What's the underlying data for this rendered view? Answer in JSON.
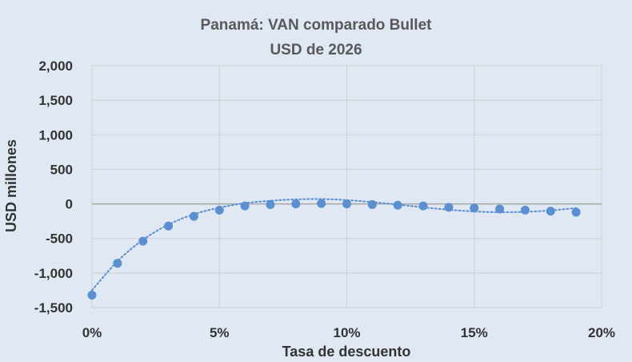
{
  "chart_data": {
    "type": "scatter",
    "title": "Panamá: VAN comparado Bullet",
    "subtitle": "USD de 2026",
    "xlabel": "Tasa de descuento",
    "ylabel": "USD millones",
    "xlim": [
      0,
      20
    ],
    "ylim": [
      -1500,
      2000
    ],
    "x_ticks": [
      0,
      5,
      10,
      15,
      20
    ],
    "x_tick_labels": [
      "0%",
      "5%",
      "10%",
      "15%",
      "20%"
    ],
    "y_ticks": [
      2000,
      1500,
      1000,
      500,
      0,
      -500,
      -1000,
      -1500
    ],
    "y_tick_labels": [
      "2,000",
      "1,500",
      "1,000",
      "500",
      "0",
      "-500",
      "-1,000",
      "-1,500"
    ],
    "grid": true,
    "trendline": "polynomial (dotted)",
    "series": [
      {
        "x": [
          0,
          1,
          2,
          3,
          4,
          5,
          6,
          7,
          8,
          9,
          10,
          11,
          12,
          13,
          14,
          15,
          16,
          17,
          18,
          19
        ],
        "values": [
          -1320,
          -860,
          -540,
          -320,
          -180,
          -90,
          -30,
          -10,
          0,
          5,
          0,
          -10,
          -20,
          -30,
          -50,
          -60,
          -75,
          -90,
          -105,
          -120
        ],
        "color": "#5b8fcf"
      }
    ],
    "trend": [
      [
        0,
        -1250
      ],
      [
        1,
        -830
      ],
      [
        2,
        -520
      ],
      [
        3,
        -300
      ],
      [
        4,
        -150
      ],
      [
        5,
        -55
      ],
      [
        6,
        10
      ],
      [
        7,
        45
      ],
      [
        8,
        65
      ],
      [
        9,
        70
      ],
      [
        10,
        55
      ],
      [
        11,
        25
      ],
      [
        12,
        -10
      ],
      [
        13,
        -50
      ],
      [
        14,
        -85
      ],
      [
        15,
        -110
      ],
      [
        16,
        -120
      ],
      [
        17,
        -115
      ],
      [
        18,
        -95
      ],
      [
        19,
        -60
      ]
    ]
  }
}
